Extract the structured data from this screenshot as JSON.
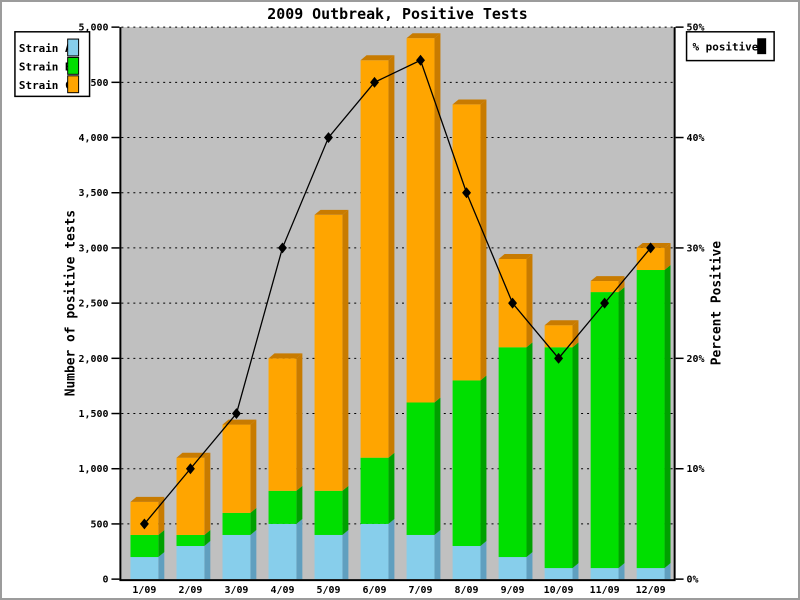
{
  "chart_data": {
    "type": "bar",
    "subtype": "stacked-3d-bars-with-percent-line",
    "title": "2009 Outbreak, Positive Tests",
    "categories": [
      "1/09",
      "2/09",
      "3/09",
      "4/09",
      "5/09",
      "6/09",
      "7/09",
      "8/09",
      "9/09",
      "10/09",
      "11/09",
      "12/09"
    ],
    "series": [
      {
        "name": "Strain A",
        "values": [
          200,
          300,
          400,
          500,
          400,
          500,
          400,
          300,
          200,
          100,
          100,
          100
        ],
        "color": "#87CEEB",
        "shade_color": "#609FBF"
      },
      {
        "name": "Strain B",
        "values": [
          200,
          100,
          200,
          300,
          400,
          600,
          1200,
          1500,
          1900,
          2000,
          2500,
          2700
        ],
        "color": "#00DF00",
        "shade_color": "#00A000"
      },
      {
        "name": "Strain C",
        "values": [
          300,
          700,
          800,
          1200,
          2500,
          3600,
          3300,
          2500,
          800,
          200,
          100,
          200
        ],
        "color": "#FFA500",
        "shade_color": "#C87B00"
      }
    ],
    "stack_totals": [
      700,
      1100,
      1400,
      2000,
      3300,
      4700,
      4900,
      4300,
      2900,
      2300,
      2700,
      3000
    ],
    "line_series": {
      "name": "% positive",
      "values": [
        5,
        10,
        15,
        30,
        40,
        45,
        47,
        35,
        25,
        20,
        25,
        30
      ],
      "color": "#000000",
      "marker": "diamond"
    },
    "left_axis": {
      "label": "Number of positive tests",
      "min": 0,
      "max": 5000,
      "tick_step": 500,
      "ticks": [
        "0",
        "500",
        "1,000",
        "1,500",
        "2,000",
        "2,500",
        "3,000",
        "3,500",
        "4,000",
        "4,500",
        "5,000"
      ]
    },
    "right_axis": {
      "label": "Percent Positive",
      "min": 0,
      "max": 50,
      "label_step": 10,
      "grid_step": 5,
      "ticks": [
        "0%",
        "10%",
        "20%",
        "30%",
        "40%",
        "50%"
      ]
    },
    "legend_left_items": [
      "Strain A",
      "Strain B",
      "Strain C"
    ],
    "legend_right_label": "% positive",
    "plot_background": "#C0C0C0",
    "grid": "dotted horizontal every 500 (5%)",
    "legend_position": "top-left and top-right"
  }
}
